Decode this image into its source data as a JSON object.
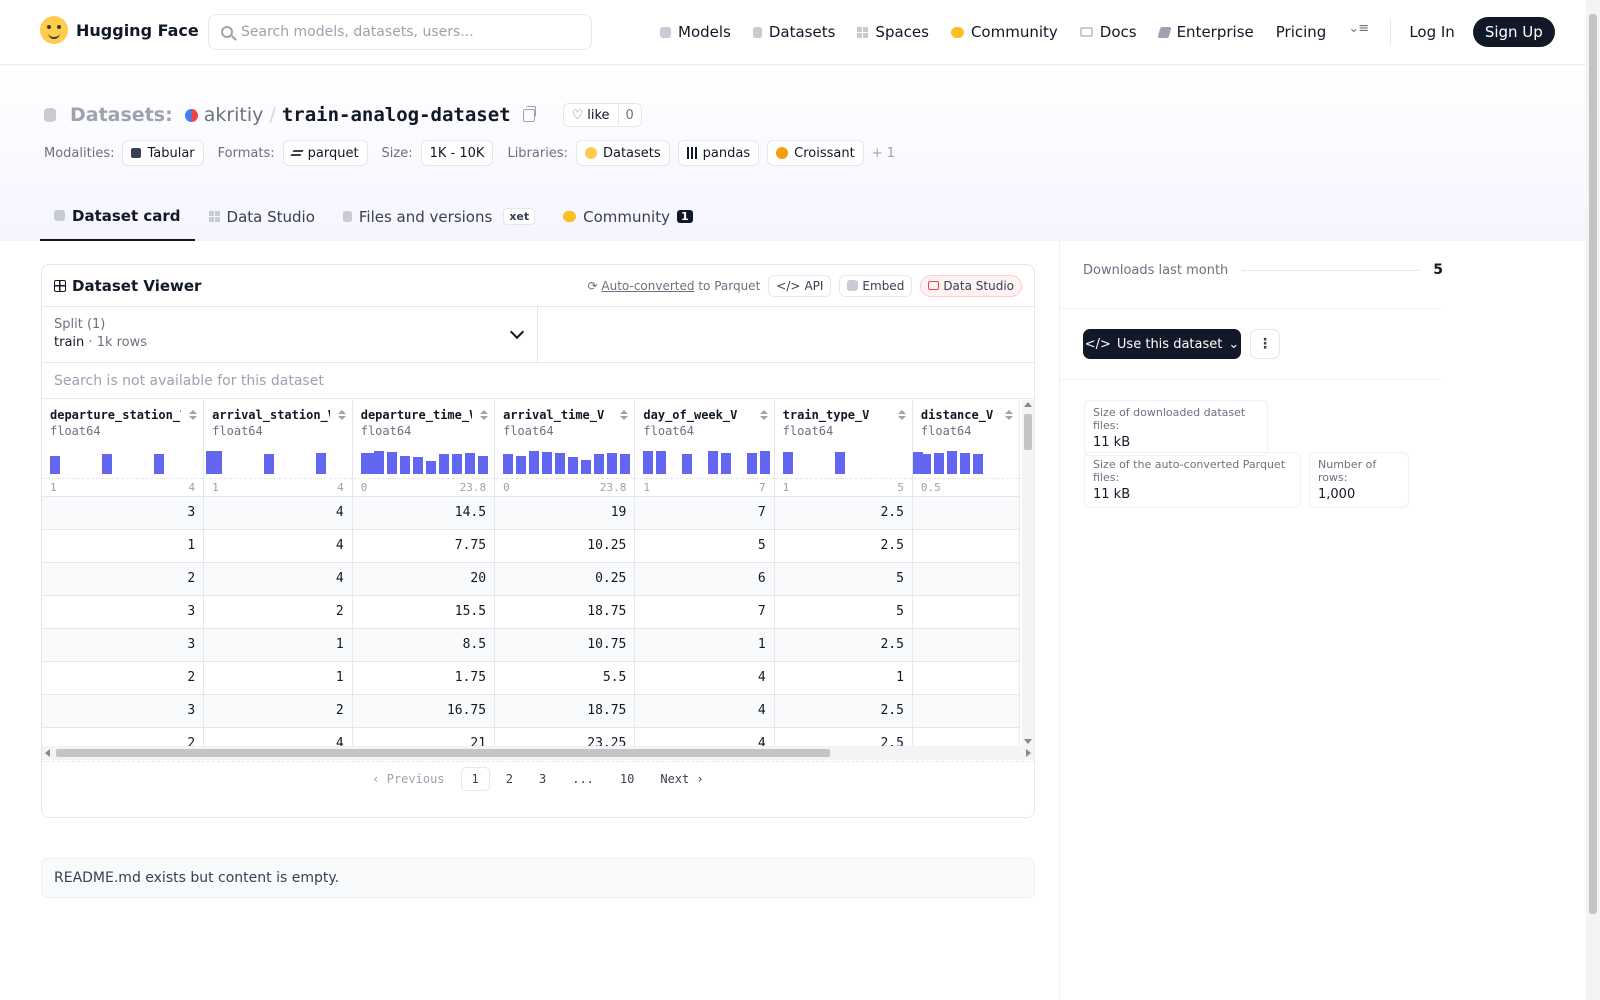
{
  "nav": {
    "brand": "Hugging Face",
    "search_placeholder": "Search models, datasets, users...",
    "links": [
      {
        "label": "Models",
        "icon": "cube-icon"
      },
      {
        "label": "Datasets",
        "icon": "database-icon"
      },
      {
        "label": "Spaces",
        "icon": "grid-icon"
      },
      {
        "label": "Community",
        "icon": "community-icon"
      },
      {
        "label": "Docs",
        "icon": "book-icon"
      },
      {
        "label": "Enterprise",
        "icon": "enterprise-icon"
      },
      {
        "label": "Pricing",
        "icon": ""
      }
    ],
    "login": "Log In",
    "signup": "Sign Up"
  },
  "header": {
    "prefix": "Datasets:",
    "author": "akritiy",
    "separator": "/",
    "name": "train-analog-dataset",
    "like_label": "like",
    "like_count": "0",
    "meta": {
      "modalities_label": "Modalities:",
      "modality": "Tabular",
      "formats_label": "Formats:",
      "format": "parquet",
      "size_label": "Size:",
      "size": "1K - 10K",
      "libraries_label": "Libraries:",
      "libraries": [
        "Datasets",
        "pandas",
        "Croissant"
      ],
      "more": "+ 1"
    },
    "tabs": [
      {
        "label": "Dataset card",
        "active": true
      },
      {
        "label": "Data Studio"
      },
      {
        "label": "Files and versions",
        "badge": "xet"
      },
      {
        "label": "Community",
        "badge": "1"
      }
    ]
  },
  "viewer": {
    "title": "Dataset Viewer",
    "auto_converted": "Auto-converted",
    "to_parquet": "to Parquet",
    "api": "API",
    "embed": "Embed",
    "data_studio": "Data Studio",
    "split_label": "Split (1)",
    "split_name": "train",
    "split_dot": "·",
    "split_rows": "1k rows",
    "search_na": "Search is not available for this dataset",
    "columns": [
      {
        "name": "departure_station_V",
        "type": "float64",
        "min": "1",
        "max": "4",
        "hist": [
          0.7,
          0,
          0,
          0,
          0.75,
          0,
          0,
          0,
          0.75,
          0,
          0,
          0,
          0.9
        ]
      },
      {
        "name": "arrival_station_V",
        "type": "float64",
        "min": "1",
        "max": "4",
        "hist": [
          0.9,
          0,
          0,
          0,
          0.75,
          0,
          0,
          0,
          0.8,
          0,
          0,
          0,
          0.8
        ]
      },
      {
        "name": "departure_time_V",
        "type": "float64",
        "min": "0",
        "max": "23.8",
        "hist": [
          0.8,
          0.9,
          0.85,
          0.7,
          0.65,
          0.5,
          0.75,
          0.75,
          0.8,
          0.7
        ]
      },
      {
        "name": "arrival_time_V",
        "type": "float64",
        "min": "0",
        "max": "23.8",
        "hist": [
          0.75,
          0.7,
          0.9,
          0.85,
          0.8,
          0.65,
          0.55,
          0.75,
          0.8,
          0.75
        ]
      },
      {
        "name": "day_of_week_V",
        "type": "float64",
        "min": "1",
        "max": "7",
        "hist": [
          0.9,
          0.9,
          0,
          0.75,
          0,
          0.9,
          0.8,
          0,
          0.8,
          0.9
        ]
      },
      {
        "name": "train_type_V",
        "type": "float64",
        "min": "1",
        "max": "5",
        "hist": [
          0.85,
          0,
          0,
          0,
          0.85,
          0,
          0,
          0,
          0,
          0,
          0.85
        ]
      },
      {
        "name": "distance_V",
        "type": "float64",
        "min": "0.5",
        "max": "",
        "hist": [
          0.75,
          0.8,
          0.9,
          0.8,
          0.75
        ]
      }
    ],
    "rows": [
      [
        "3",
        "4",
        "14.5",
        "19",
        "7",
        "2.5",
        ""
      ],
      [
        "1",
        "4",
        "7.75",
        "10.25",
        "5",
        "2.5",
        ""
      ],
      [
        "2",
        "4",
        "20",
        "0.25",
        "6",
        "5",
        ""
      ],
      [
        "3",
        "2",
        "15.5",
        "18.75",
        "7",
        "5",
        ""
      ],
      [
        "3",
        "1",
        "8.5",
        "10.75",
        "1",
        "2.5",
        ""
      ],
      [
        "2",
        "1",
        "1.75",
        "5.5",
        "4",
        "1",
        ""
      ],
      [
        "3",
        "2",
        "16.75",
        "18.75",
        "4",
        "2.5",
        ""
      ],
      [
        "2",
        "4",
        "21",
        "23.25",
        "4",
        "2.5",
        ""
      ],
      [
        "",
        "",
        "",
        "",
        "",
        "",
        ""
      ]
    ],
    "pager": {
      "previous": "Previous",
      "pages": [
        "1",
        "2",
        "3",
        "...",
        "10"
      ],
      "current": "1",
      "next": "Next"
    }
  },
  "readme": "README.md exists but content is empty.",
  "sidebar": {
    "downloads_label": "Downloads last month",
    "downloads_value": "5",
    "use_button": "Use this dataset",
    "stats": [
      {
        "label": "Size of downloaded dataset files:",
        "value": "11 kB"
      },
      {
        "label": "Size of the auto-converted Parquet files:",
        "value": "11 kB"
      },
      {
        "label": "Number of rows:",
        "value": "1,000"
      }
    ]
  }
}
